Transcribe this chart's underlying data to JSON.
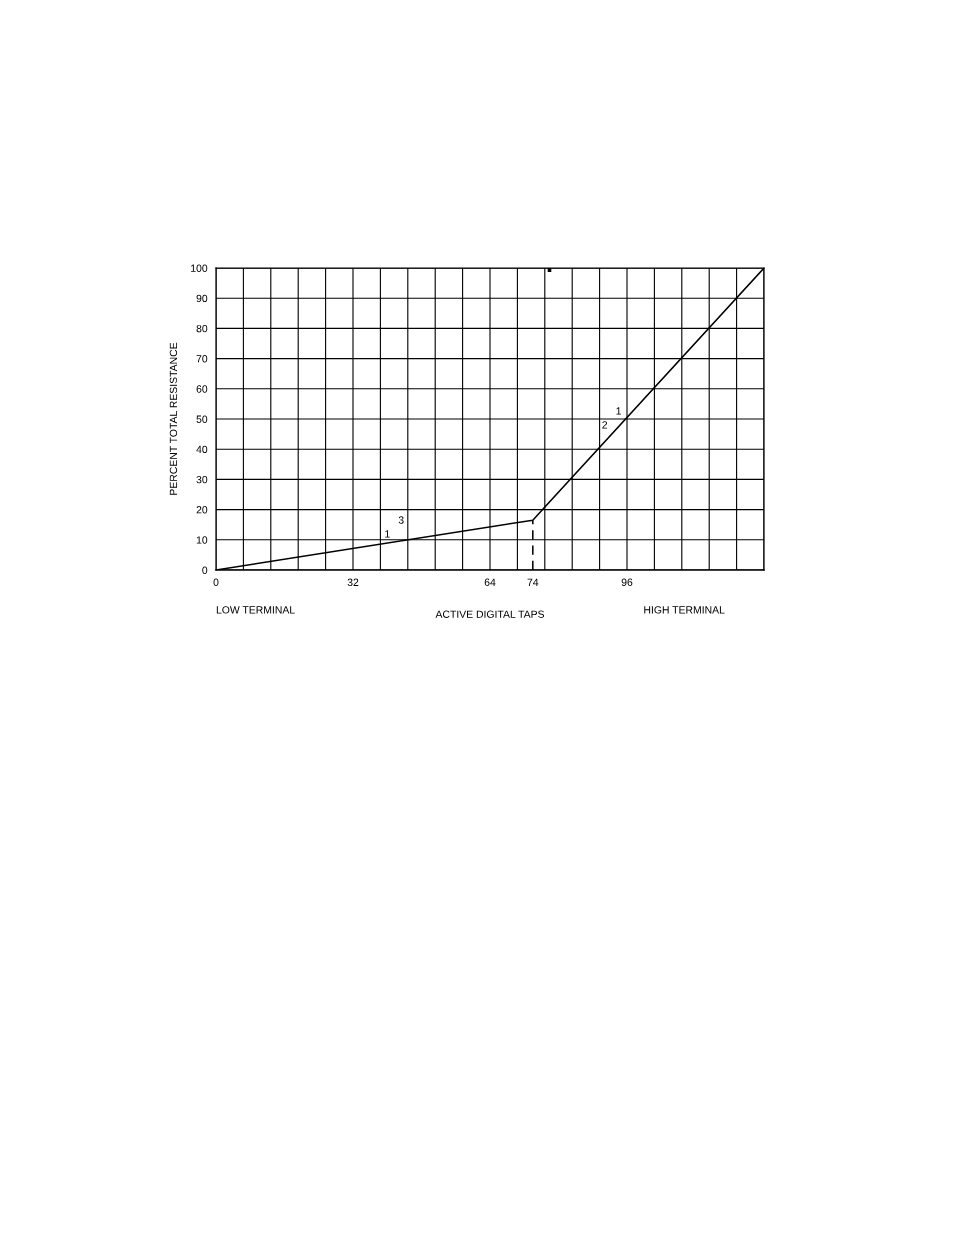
{
  "chart_data": {
    "type": "line",
    "xlabel": "ACTIVE DIGITAL TAPS",
    "ylabel": "PERCENT TOTAL RESISTANCE",
    "series": [
      {
        "color": "#000000",
        "x": [
          0,
          74,
          128
        ],
        "values": [
          0,
          16.5,
          100
        ]
      },
      {
        "color": "#000000",
        "x": [
          74,
          74
        ],
        "values": [
          0,
          16.5
        ],
        "line_style": "dashed"
      }
    ],
    "xlim": [
      0,
      128
    ],
    "ylim": [
      0,
      100
    ],
    "xticks": [
      0,
      32,
      64,
      74,
      96,
      {
        "value": 0,
        "label": null
      },
      {
        "value": 6.4,
        "label": null
      },
      {
        "value": 12.8,
        "label": null
      },
      {
        "value": 19.2,
        "label": null
      },
      {
        "value": 25.6,
        "label": null
      },
      {
        "value": 32,
        "label": null
      },
      {
        "value": 38.4,
        "label": null
      },
      {
        "value": 44.8,
        "label": null
      },
      {
        "value": 51.2,
        "label": null
      },
      {
        "value": 57.6,
        "label": null
      },
      {
        "value": 64,
        "label": null
      },
      {
        "value": 70.4,
        "label": null
      },
      {
        "value": 76.8,
        "label": null
      },
      {
        "value": 83.2,
        "label": null
      },
      {
        "value": 89.6,
        "label": null
      },
      {
        "value": 96,
        "label": null
      },
      {
        "value": 102.4,
        "label": null
      },
      {
        "value": 108.8,
        "label": null
      },
      {
        "value": 115.2,
        "label": null
      },
      {
        "value": 121.6,
        "label": null
      },
      {
        "value": 128,
        "label": null
      }
    ],
    "yticks": [
      0,
      10,
      20,
      30,
      40,
      50,
      60,
      70,
      80,
      90,
      100
    ],
    "grid": true,
    "legend": false,
    "marker": "none",
    "line_style": "solid",
    "annotations": [
      "1",
      "3",
      "2",
      "1",
      "LOW TERMINAL",
      "HIGH TERMINAL"
    ]
  }
}
